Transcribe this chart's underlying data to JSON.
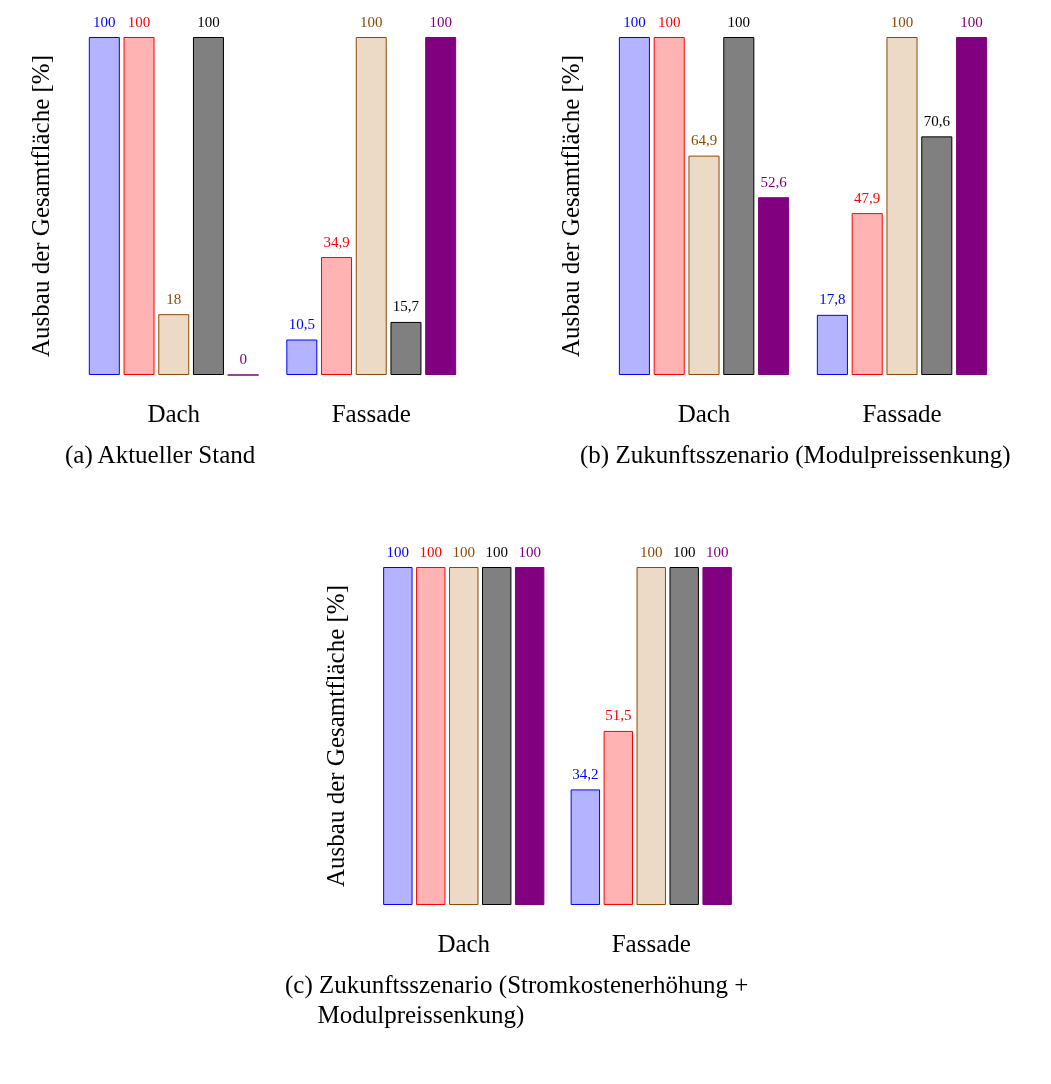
{
  "chart_data": [
    {
      "type": "bar",
      "title": "(a) Aktueller Stand",
      "ylabel": "Ausbau der Gesamtfläche [%]",
      "categories": [
        "Dach",
        "Fassade"
      ],
      "tick_labels": "x",
      "series": [
        {
          "color": "#b3b3ff",
          "values": [
            100,
            10.5
          ],
          "value_labels": [
            "100",
            "10,5"
          ]
        },
        {
          "color": "#ffb3b3",
          "values": [
            100,
            34.9
          ],
          "value_labels": [
            "100",
            "34,9"
          ]
        },
        {
          "color": "#ecdac6",
          "values": [
            18,
            100
          ],
          "value_labels": [
            "18",
            "100"
          ]
        },
        {
          "color": "#808080",
          "values": [
            100,
            15.7
          ],
          "value_labels": [
            "100",
            "15,7"
          ]
        },
        {
          "color": "#800080",
          "values": [
            0,
            100
          ],
          "value_labels": [
            "0",
            "100"
          ]
        }
      ]
    },
    {
      "type": "bar",
      "title": "(b) Zukunftsszenario (Modulpreissenkung)",
      "ylabel": "Ausbau der Gesamtfläche [%]",
      "categories": [
        "Dach",
        "Fassade"
      ],
      "tick_labels": "x",
      "series": [
        {
          "color": "#b3b3ff",
          "values": [
            100,
            17.8
          ],
          "value_labels": [
            "100",
            "17,8"
          ]
        },
        {
          "color": "#ffb3b3",
          "values": [
            100,
            47.9
          ],
          "value_labels": [
            "100",
            "47,9"
          ]
        },
        {
          "color": "#ecdac6",
          "values": [
            64.9,
            100
          ],
          "value_labels": [
            "64,9",
            "100"
          ]
        },
        {
          "color": "#808080",
          "values": [
            100,
            70.6
          ],
          "value_labels": [
            "100",
            "70,6"
          ]
        },
        {
          "color": "#800080",
          "values": [
            52.6,
            100
          ],
          "value_labels": [
            "52,6",
            "100"
          ]
        }
      ]
    },
    {
      "type": "bar",
      "title": "(c) Zukunftsszenario (Stromkostenerhöhung + Modulpreissenkung)",
      "ylabel": "Ausbau der Gesamtfläche [%]",
      "categories": [
        "Dach",
        "Fassade"
      ],
      "tick_labels": "x",
      "series": [
        {
          "color": "#b3b3ff",
          "values": [
            100,
            34.2
          ],
          "value_labels": [
            "100",
            "34,2"
          ]
        },
        {
          "color": "#ffb3b3",
          "values": [
            100,
            51.5
          ],
          "value_labels": [
            "100",
            "51,5"
          ]
        },
        {
          "color": "#ecdac6",
          "values": [
            100,
            100
          ],
          "value_labels": [
            "100",
            "100"
          ]
        },
        {
          "color": "#808080",
          "values": [
            100,
            100
          ],
          "value_labels": [
            "100",
            "100"
          ]
        },
        {
          "color": "#800080",
          "values": [
            100,
            100
          ],
          "value_labels": [
            "100",
            "100"
          ]
        }
      ]
    }
  ]
}
